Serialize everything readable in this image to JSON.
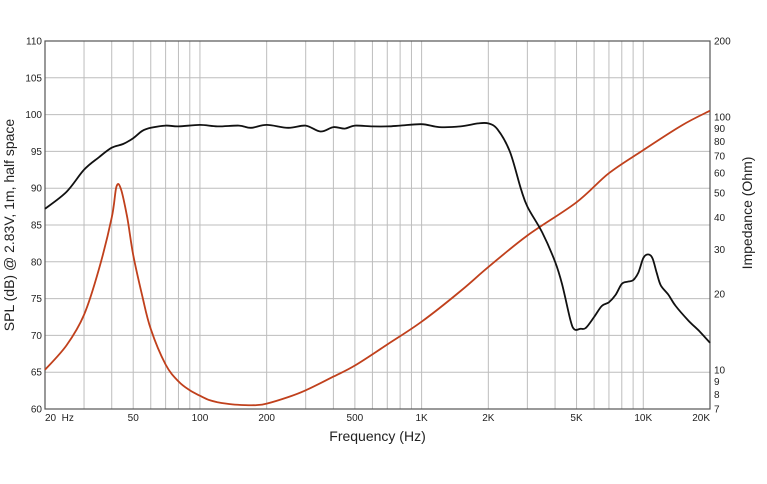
{
  "chart_data": {
    "type": "line",
    "xlabel": "Frequency (Hz)",
    "ylabel_left": "SPL (dB) @ 2.83V, 1m, half space",
    "ylabel_right": "Impedance (Ohm)",
    "x_scale": "log",
    "xlim": [
      20,
      20000
    ],
    "ylim_left": [
      60,
      110
    ],
    "ylim_right": [
      7,
      200
    ],
    "y_right_scale": "log",
    "grid": true,
    "x_ticks": [
      {
        "value": 20,
        "label": "20  Hz"
      },
      {
        "value": 50,
        "label": "50"
      },
      {
        "value": 100,
        "label": "100"
      },
      {
        "value": 200,
        "label": "200"
      },
      {
        "value": 500,
        "label": "500"
      },
      {
        "value": 1000,
        "label": "1K"
      },
      {
        "value": 2000,
        "label": "2K"
      },
      {
        "value": 5000,
        "label": "5K"
      },
      {
        "value": 10000,
        "label": "10K"
      },
      {
        "value": 20000,
        "label": "20K"
      }
    ],
    "y_left_ticks": [
      {
        "value": 60,
        "label": "60"
      },
      {
        "value": 65,
        "label": "65"
      },
      {
        "value": 70,
        "label": "70"
      },
      {
        "value": 75,
        "label": "75"
      },
      {
        "value": 80,
        "label": "80"
      },
      {
        "value": 85,
        "label": "85"
      },
      {
        "value": 90,
        "label": "90"
      },
      {
        "value": 95,
        "label": "95"
      },
      {
        "value": 100,
        "label": "100"
      },
      {
        "value": 105,
        "label": "105"
      },
      {
        "value": 110,
        "label": "110"
      }
    ],
    "y_right_ticks": [
      {
        "value": 7,
        "label": "7"
      },
      {
        "value": 8,
        "label": "8"
      },
      {
        "value": 9,
        "label": "9"
      },
      {
        "value": 10,
        "label": "10"
      },
      {
        "value": 20,
        "label": "20"
      },
      {
        "value": 30,
        "label": "30"
      },
      {
        "value": 40,
        "label": "40"
      },
      {
        "value": 50,
        "label": "50"
      },
      {
        "value": 60,
        "label": "60"
      },
      {
        "value": 70,
        "label": "70"
      },
      {
        "value": 80,
        "label": "80"
      },
      {
        "value": 90,
        "label": "90"
      },
      {
        "value": 100,
        "label": "100"
      },
      {
        "value": 200,
        "label": "200"
      }
    ],
    "series": [
      {
        "axis": "left",
        "color": "#111111",
        "x": [
          20,
          25,
          30,
          35,
          40,
          45,
          50,
          55,
          60,
          70,
          80,
          100,
          120,
          150,
          170,
          200,
          250,
          300,
          350,
          400,
          450,
          500,
          600,
          700,
          800,
          1000,
          1200,
          1500,
          1800,
          2000,
          2200,
          2500,
          2800,
          3000,
          3500,
          4000,
          4300,
          4700,
          4900,
          5200,
          5500,
          6000,
          6500,
          7000,
          7500,
          8000,
          8500,
          9000,
          9500,
          10000,
          10500,
          11000,
          11500,
          12000,
          13000,
          14000,
          16000,
          18000,
          20000
        ],
        "y": [
          87.2,
          89.5,
          92.5,
          94.2,
          95.5,
          96.0,
          96.8,
          97.8,
          98.2,
          98.5,
          98.4,
          98.6,
          98.4,
          98.5,
          98.2,
          98.6,
          98.2,
          98.5,
          97.7,
          98.3,
          98.1,
          98.5,
          98.4,
          98.4,
          98.5,
          98.7,
          98.3,
          98.4,
          98.8,
          98.8,
          98.0,
          95.0,
          90.0,
          87.5,
          84.0,
          80.0,
          77.0,
          72.0,
          70.8,
          70.9,
          71.0,
          72.5,
          74.0,
          74.5,
          75.5,
          77.0,
          77.3,
          77.5,
          78.5,
          80.5,
          81.0,
          80.5,
          78.5,
          76.8,
          75.5,
          74.0,
          72.0,
          70.5,
          69.0
        ]
      },
      {
        "axis": "right",
        "color": "#c0401c",
        "x": [
          20,
          25,
          30,
          35,
          40,
          42,
          44,
          47,
          50,
          55,
          60,
          70,
          80,
          90,
          100,
          110,
          120,
          140,
          160,
          180,
          200,
          250,
          300,
          400,
          500,
          700,
          1000,
          1500,
          2000,
          3000,
          5000,
          7000,
          10000,
          15000,
          20000
        ],
        "y": [
          10.0,
          12.5,
          16.5,
          25.0,
          40.0,
          53.0,
          52.0,
          40.0,
          28.5,
          19.5,
          14.5,
          10.5,
          9.0,
          8.3,
          7.9,
          7.6,
          7.45,
          7.3,
          7.25,
          7.25,
          7.35,
          7.8,
          8.3,
          9.4,
          10.4,
          12.6,
          15.5,
          20.5,
          25.5,
          34.0,
          46.0,
          60.0,
          74.0,
          93.0,
          106.0
        ]
      }
    ]
  }
}
